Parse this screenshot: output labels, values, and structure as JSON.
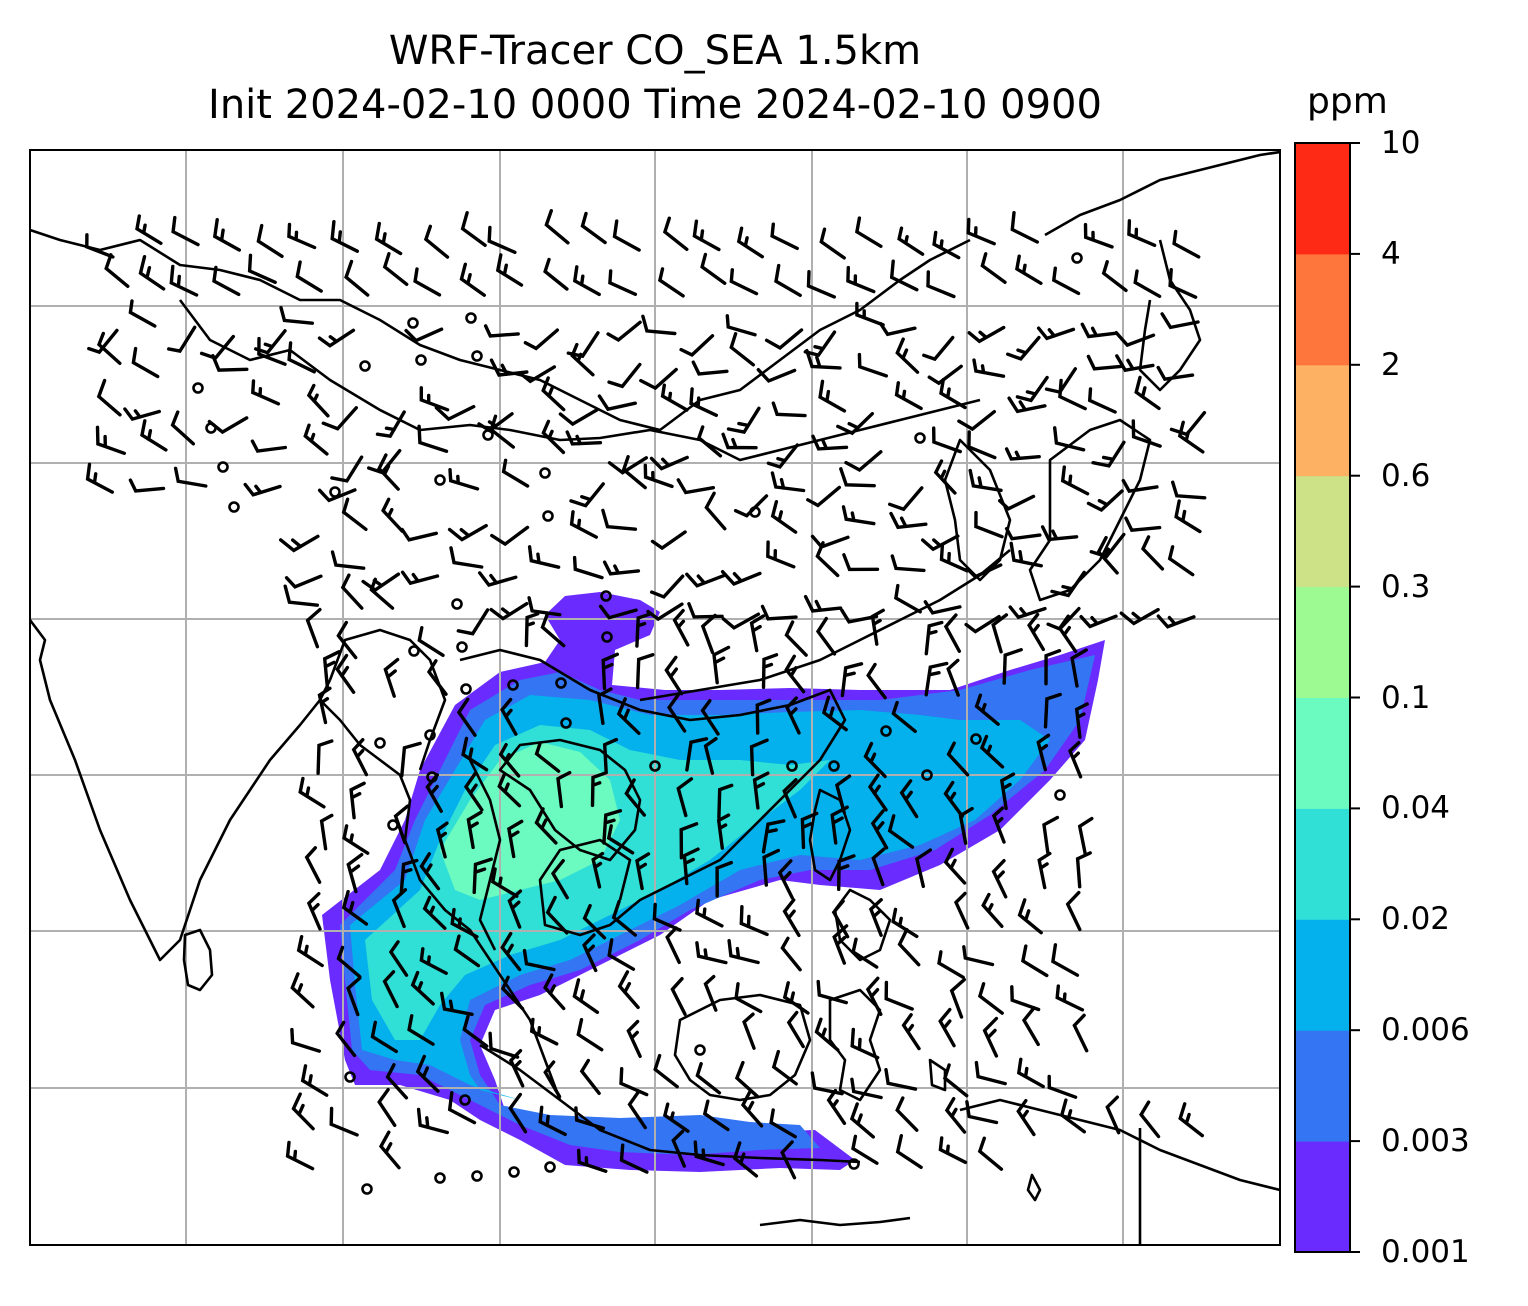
{
  "title": {
    "line1": "WRF-Tracer CO_SEA 1.5km",
    "line2": "Init 2024-02-10 0000 Time 2024-02-10 0900"
  },
  "colorbar": {
    "unit": "ppm",
    "ticks": [
      "0.001",
      "0.003",
      "0.006",
      "0.02",
      "0.04",
      "0.1",
      "0.3",
      "0.6",
      "2",
      "4",
      "10"
    ],
    "colors": [
      "#6a2bff",
      "#3375f2",
      "#04b1ec",
      "#30dfd6",
      "#6bfbc0",
      "#9df992",
      "#cde287",
      "#fdb163",
      "#ff763c",
      "#ff2a16"
    ]
  },
  "map": {
    "gridlines": true,
    "features": [
      "coastlines",
      "country-borders",
      "wind-barbs",
      "co-tracer-concentration"
    ]
  }
}
